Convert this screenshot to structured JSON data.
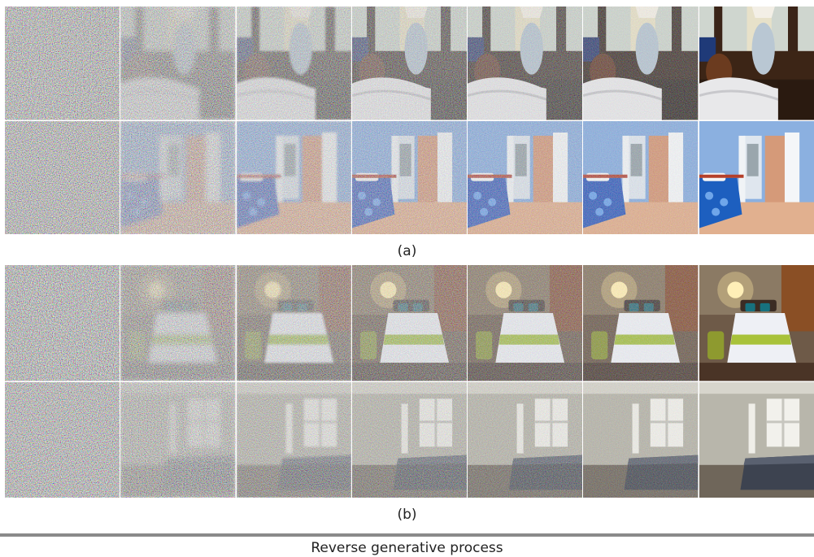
{
  "figure": {
    "caption_a": "(a)",
    "caption_b": "(b)",
    "footer_label": "Reverse generative process"
  },
  "panel_a": {
    "rows": [
      {
        "scene": "dark-wood-bedroom-lamp",
        "steps": 7
      },
      {
        "scene": "blue-bedroom-open-door",
        "steps": 7
      }
    ]
  },
  "panel_b": {
    "rows": [
      {
        "scene": "warm-hotel-bedroom",
        "steps": 7
      },
      {
        "scene": "grey-bedroom-window",
        "steps": 7
      }
    ]
  }
}
